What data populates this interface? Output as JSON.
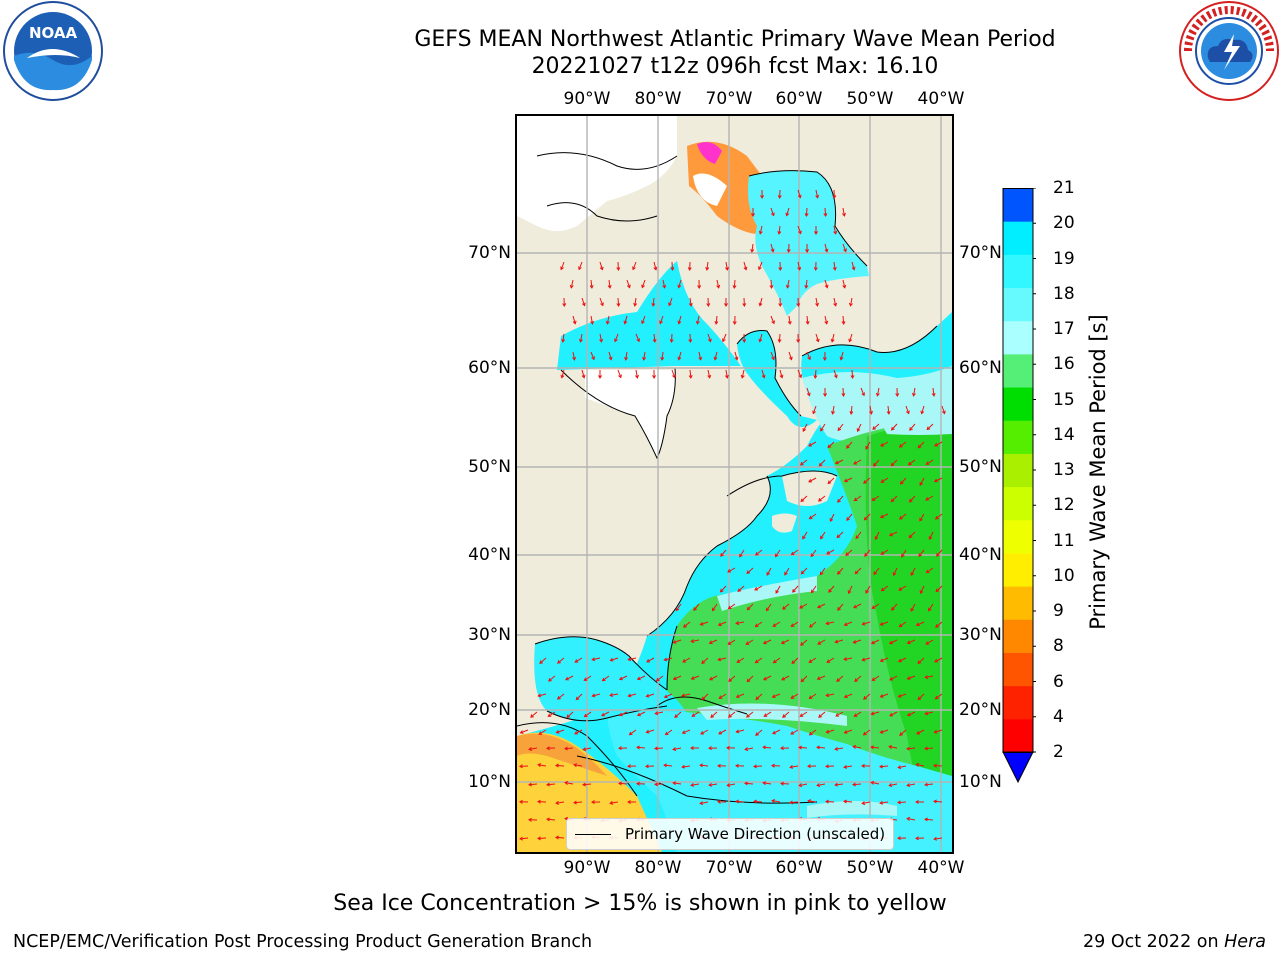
{
  "title_line1": "GEFS MEAN Northwest Atlantic Primary Wave Mean Period",
  "title_line2": "20221027 t12z 096h fcst   Max: 16.10",
  "lon_ticks": [
    "90°W",
    "80°W",
    "70°W",
    "60°W",
    "50°W",
    "40°W"
  ],
  "lat_ticks": [
    "70°N",
    "60°N",
    "50°N",
    "40°N",
    "30°N",
    "20°N",
    "10°N"
  ],
  "legend_label": "Primary Wave Direction (unscaled)",
  "colorbar": {
    "label": "Primary Wave Mean Period [s]",
    "ticks": [
      "2",
      "4",
      "6",
      "8",
      "9",
      "10",
      "11",
      "12",
      "13",
      "14",
      "15",
      "16",
      "17",
      "18",
      "19",
      "20",
      "21"
    ],
    "colors": [
      "#0055ff",
      "#00eeff",
      "#33f7ff",
      "#66faff",
      "#aaffff",
      "#55ef77",
      "#00dd00",
      "#55ee00",
      "#aaee00",
      "#ccff00",
      "#eeff00",
      "#ffee00",
      "#ffbb00",
      "#ff8800",
      "#ff5500",
      "#ff2200",
      "#ff0000"
    ],
    "under_color": "#0000ff"
  },
  "footnote": "Sea Ice Concentration > 15% is shown in pink to yellow",
  "credit": "NCEP/EMC/Verification Post Processing Product Generation Branch",
  "date_prefix": "29 Oct 2022 on ",
  "date_host": "Hera",
  "logos": {
    "left": "noaa-logo",
    "right": "nws-logo"
  },
  "map_colors": {
    "land": "#efecdc",
    "ocean_short": "#22f0ff",
    "ocean_mid": "#aaf7f7",
    "ocean_green": "#44dd55",
    "ocean_hi": "#fdd23a",
    "arrows": "#ee1111",
    "grid": "#b4b4b4"
  }
}
